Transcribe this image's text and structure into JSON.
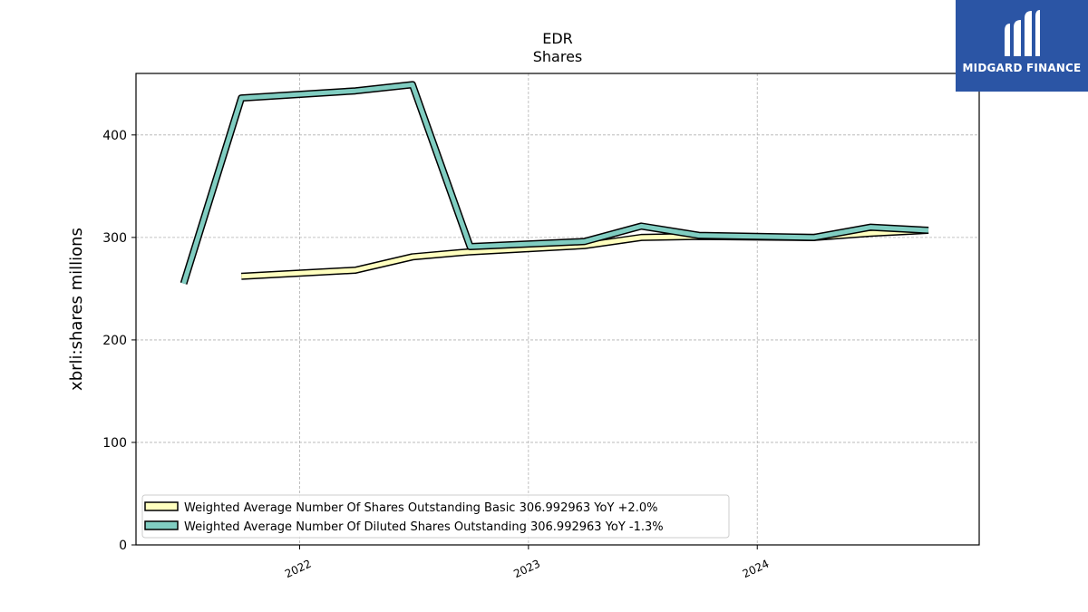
{
  "chart_data": {
    "type": "line",
    "title": "EDR",
    "subtitle": "Shares",
    "xlabel": "",
    "ylabel": "xbrli:shares millions",
    "xlim": [
      "2021-04-15",
      "2024-12-20"
    ],
    "ylim": [
      0,
      460
    ],
    "yticks": [
      0,
      100,
      200,
      300,
      400
    ],
    "ytick_labels": [
      "0",
      "100",
      "200",
      "300",
      "400"
    ],
    "xticks": [
      "2022-01-01",
      "2023-01-01",
      "2024-01-01"
    ],
    "xtick_labels": [
      "2022",
      "2023",
      "2024"
    ],
    "grid": true,
    "legend_position": "lower-left",
    "series": [
      {
        "name": "Weighted Average Number Of Shares Outstanding Basic  306.992963 YoY +2.0%",
        "color": "#ffffbf",
        "points": [
          {
            "x": "2021-09-30",
            "y": 262
          },
          {
            "x": "2022-03-31",
            "y": 268
          },
          {
            "x": "2022-06-30",
            "y": 281
          },
          {
            "x": "2022-09-30",
            "y": 286
          },
          {
            "x": "2023-03-31",
            "y": 292
          },
          {
            "x": "2023-06-30",
            "y": 300
          },
          {
            "x": "2023-09-30",
            "y": 301
          },
          {
            "x": "2024-03-31",
            "y": 300
          },
          {
            "x": "2024-06-30",
            "y": 304
          },
          {
            "x": "2024-09-30",
            "y": 307
          }
        ]
      },
      {
        "name": "Weighted Average Number Of Diluted Shares Outstanding  306.992963 YoY -1.3%",
        "color": "#80cdc1",
        "points": [
          {
            "x": "2021-06-30",
            "y": 255
          },
          {
            "x": "2021-09-30",
            "y": 436
          },
          {
            "x": "2022-03-31",
            "y": 443
          },
          {
            "x": "2022-06-30",
            "y": 449
          },
          {
            "x": "2022-09-30",
            "y": 291
          },
          {
            "x": "2023-03-31",
            "y": 296
          },
          {
            "x": "2023-06-30",
            "y": 311
          },
          {
            "x": "2023-09-30",
            "y": 302
          },
          {
            "x": "2024-03-31",
            "y": 300
          },
          {
            "x": "2024-06-30",
            "y": 310
          },
          {
            "x": "2024-09-30",
            "y": 307
          }
        ]
      }
    ]
  },
  "logo": {
    "text": "MIDGARD FINANCE",
    "background": "#2b55a5"
  }
}
